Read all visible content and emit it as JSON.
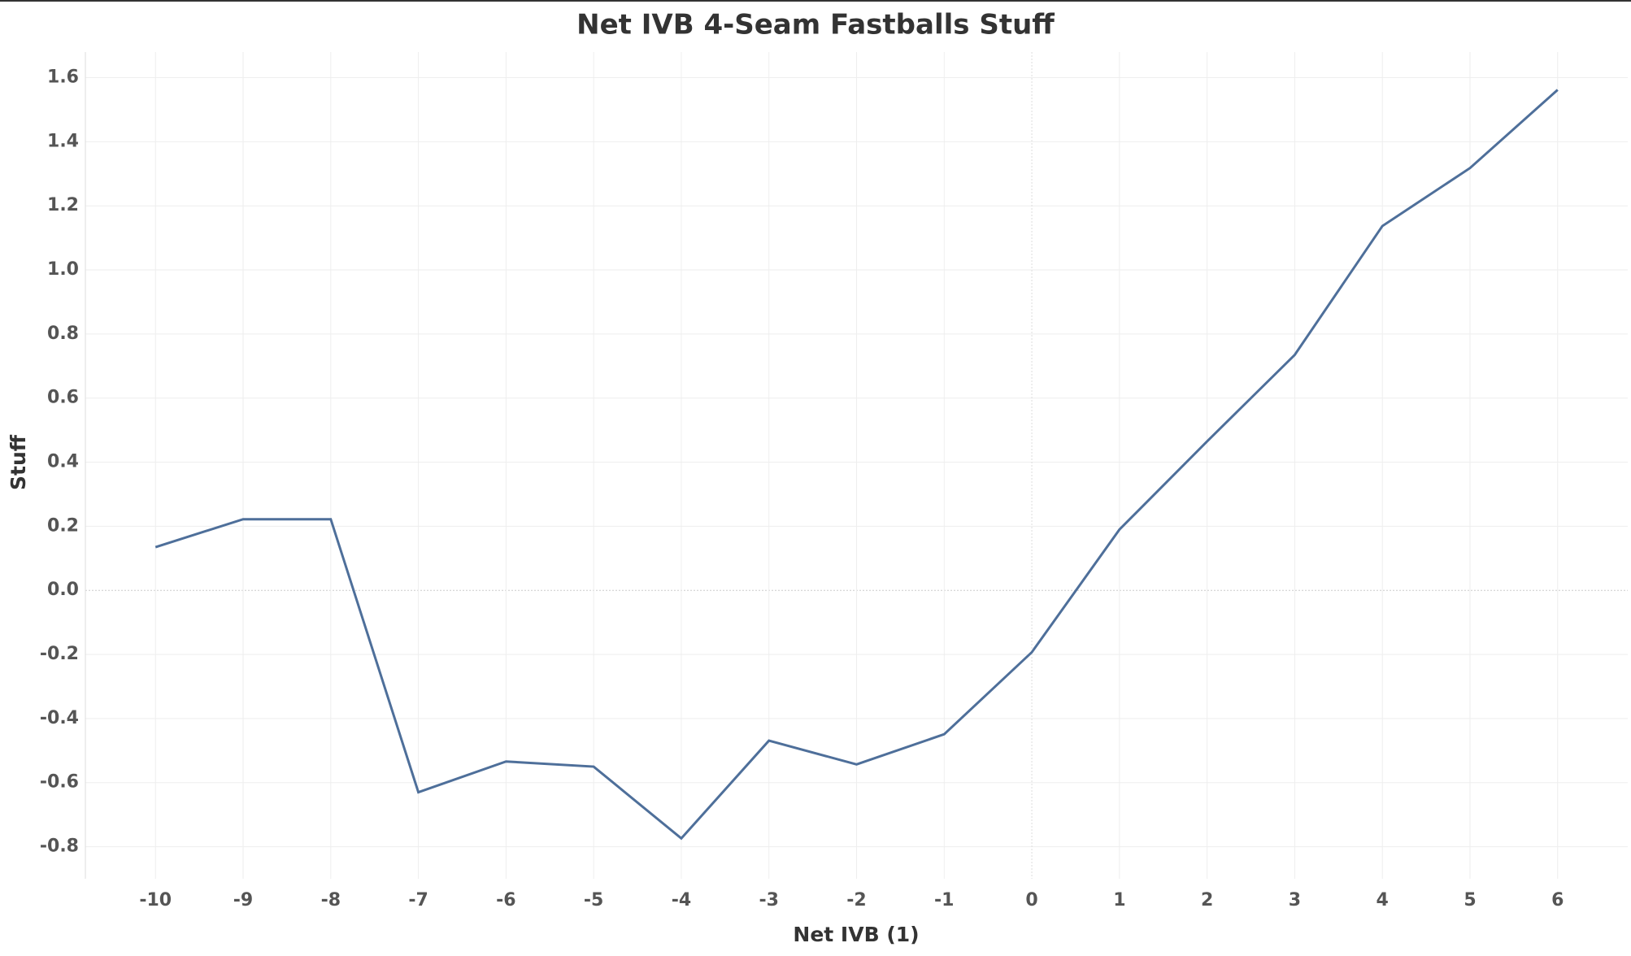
{
  "chart_data": {
    "type": "line",
    "title": "Net IVB 4-Seam Fastballs Stuff",
    "x_label": "Net IVB (1)",
    "y_label": "Stuff",
    "x": [
      -10,
      -9,
      -8,
      -7,
      -6,
      -5,
      -4,
      -3,
      -2,
      -1,
      0,
      1,
      2,
      3,
      4,
      5,
      6
    ],
    "series": [
      {
        "name": "Stuff",
        "color": "#4e6f9a",
        "values": [
          0.135,
          0.222,
          0.222,
          -0.63,
          -0.534,
          -0.55,
          -0.774,
          -0.469,
          -0.543,
          -0.449,
          -0.193,
          0.19,
          0.465,
          0.735,
          1.137,
          1.318,
          1.562
        ]
      }
    ],
    "xlim": [
      -10.8,
      6.8
    ],
    "xticks": [
      -10,
      -9,
      -8,
      -7,
      -6,
      -5,
      -4,
      -3,
      -2,
      -1,
      0,
      1,
      2,
      3,
      4,
      5,
      6
    ],
    "ylim": [
      -0.9,
      1.68
    ],
    "yticks": [
      -0.8,
      -0.6,
      -0.4,
      -0.2,
      {
        "value": 0,
        "label": "0.0"
      },
      0.2,
      0.4,
      0.6,
      0.8,
      {
        "value": 1,
        "label": "1.0"
      },
      1.2,
      1.4,
      1.6
    ],
    "grid": true
  }
}
